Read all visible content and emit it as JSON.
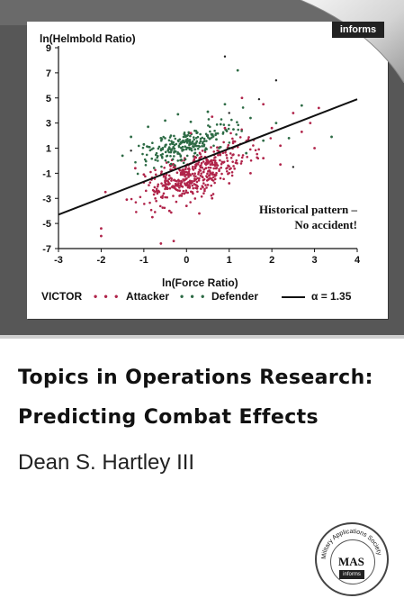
{
  "chart_data": {
    "type": "scatter",
    "title": "",
    "xlabel": "ln(Force Ratio)",
    "ylabel": "ln(Helmbold Ratio)",
    "xlim": [
      -3,
      4
    ],
    "ylim": [
      -7,
      9
    ],
    "xticks": [
      "-3",
      "-2",
      "-1",
      "0",
      "1",
      "2",
      "3",
      "4"
    ],
    "yticks": [
      "9",
      "7",
      "5",
      "3",
      "1",
      "-1",
      "-3",
      "-5",
      "-7"
    ],
    "series": [
      {
        "name": "Attacker",
        "color": "#b0244a",
        "points": [
          [
            -2,
            -5.4
          ],
          [
            -2,
            -6.0
          ],
          [
            -0.6,
            -6.6
          ],
          [
            -0.3,
            -6.4
          ],
          [
            0.2,
            0.3
          ],
          [
            1.5,
            -1.0
          ],
          [
            2.2,
            1.2
          ],
          [
            3.1,
            4.2
          ],
          [
            3.0,
            1.0
          ],
          [
            2.5,
            3.8
          ],
          [
            2.7,
            2.3
          ],
          [
            2.2,
            -0.3
          ],
          [
            1.8,
            4.5
          ],
          [
            1.3,
            5.0
          ],
          [
            0.6,
            3.5
          ],
          [
            0.1,
            2.2
          ],
          [
            -0.2,
            -2.0
          ],
          [
            -0.7,
            -2.4
          ],
          [
            -1.0,
            -1.1
          ],
          [
            -0.8,
            -4.5
          ],
          [
            -1.4,
            -3.1
          ],
          [
            -1.9,
            -2.5
          ],
          [
            0.3,
            -4.2
          ],
          [
            0.6,
            -3.0
          ],
          [
            1.0,
            -1.8
          ],
          [
            1.8,
            0.2
          ],
          [
            -0.4,
            -4.0
          ],
          [
            0.0,
            -3.6
          ],
          [
            -1.2,
            -0.6
          ],
          [
            -0.5,
            -1.7
          ],
          [
            0.4,
            -0.9
          ],
          [
            1.2,
            1.1
          ],
          [
            0.9,
            2.6
          ],
          [
            2.0,
            2.6
          ],
          [
            2.9,
            3.0
          ]
        ]
      },
      {
        "name": "Defender",
        "color": "#2d6b45",
        "points": [
          [
            -1.3,
            1.9
          ],
          [
            -0.9,
            2.7
          ],
          [
            -0.5,
            3.2
          ],
          [
            -0.2,
            3.7
          ],
          [
            0.1,
            3.1
          ],
          [
            0.5,
            3.9
          ],
          [
            0.8,
            2.9
          ],
          [
            1.1,
            2.5
          ],
          [
            1.5,
            3.4
          ],
          [
            2.1,
            3.0
          ],
          [
            2.7,
            4.4
          ],
          [
            3.4,
            1.9
          ],
          [
            -1.5,
            0.4
          ],
          [
            -1.0,
            1.3
          ],
          [
            -0.6,
            1.8
          ],
          [
            -0.1,
            1.5
          ],
          [
            0.2,
            0.9
          ],
          [
            0.7,
            1.7
          ],
          [
            1.0,
            1.0
          ],
          [
            1.4,
            0.6
          ],
          [
            1.8,
            1.6
          ],
          [
            2.4,
            1.8
          ],
          [
            0.9,
            4.5
          ],
          [
            1.2,
            7.2
          ]
        ]
      }
    ],
    "trend_line": {
      "label": "α = 1.35",
      "x": [
        -3,
        4
      ],
      "y": [
        -4.3,
        4.9
      ]
    },
    "grid": false,
    "legend_position": "bottom"
  },
  "plot": {
    "ylabel": "ln(Helmbold Ratio)",
    "xlabel": "ln(Force Ratio)",
    "annotation_line1": "Historical pattern –",
    "annotation_line2": "No accident!",
    "legend_victor": "VICTOR",
    "legend_attacker_dots": "• • •",
    "legend_attacker": "Attacker",
    "legend_defender_dots": "• • •",
    "legend_defender": "Defender",
    "legend_alpha": "α = 1.35"
  },
  "publisher": {
    "badge": "informs"
  },
  "book": {
    "title_line1": "Topics in Operations Research:",
    "title_line2": "Predicting Combat Effects",
    "author": "Dean S. Hartley III"
  },
  "seal": {
    "label": "MAS",
    "ring_text": "Military Applications Society",
    "sub": "informs"
  },
  "colors": {
    "attacker": "#b0244a",
    "defender": "#2d6b45",
    "band": "#575757"
  }
}
